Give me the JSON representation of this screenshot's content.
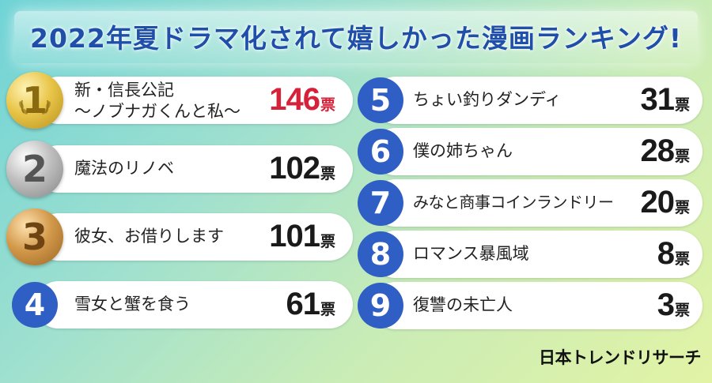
{
  "title": "2022年夏ドラマ化されて嬉しかった漫画ランキング!",
  "brand": "日本トレンドリサーチ",
  "chart_data": {
    "type": "table",
    "unit": "票",
    "items": [
      {
        "rank": "1",
        "name_line1": "新・信長公記",
        "name_line2": "～ノブナガくんと私～",
        "votes": 146
      },
      {
        "rank": "2",
        "name_line1": "魔法のリノベ",
        "name_line2": "",
        "votes": 102
      },
      {
        "rank": "3",
        "name_line1": "彼女、お借りします",
        "name_line2": "",
        "votes": 101
      },
      {
        "rank": "4",
        "name_line1": "雪女と蟹を食う",
        "name_line2": "",
        "votes": 61
      },
      {
        "rank": "5",
        "name_line1": "ちょい釣りダンディ",
        "name_line2": "",
        "votes": 31
      },
      {
        "rank": "6",
        "name_line1": "僕の姉ちゃん",
        "name_line2": "",
        "votes": 28
      },
      {
        "rank": "7",
        "name_line1": "みなと商事コインランドリー",
        "name_line2": "",
        "votes": 20
      },
      {
        "rank": "8",
        "name_line1": "ロマンス暴風域",
        "name_line2": "",
        "votes": 8
      },
      {
        "rank": "9",
        "name_line1": "復讐の未亡人",
        "name_line2": "",
        "votes": 3
      }
    ]
  },
  "colors": {
    "title": "#1f4fa8",
    "badge_blue": "#2f5fc4",
    "first_votes": "#d6213a"
  }
}
